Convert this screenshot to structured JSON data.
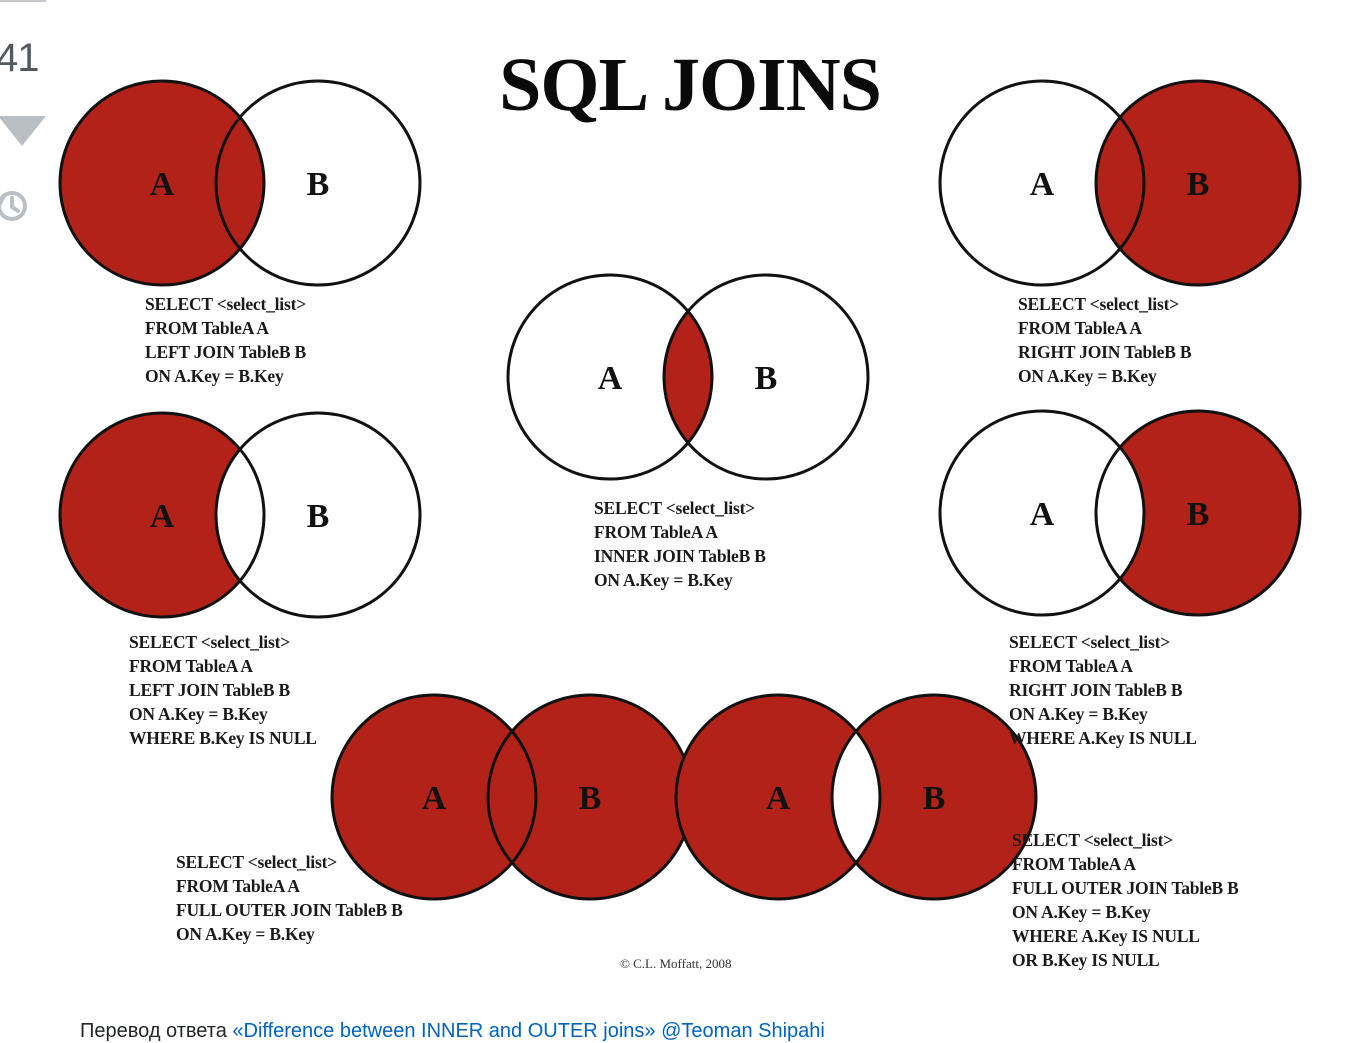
{
  "post": {
    "vote_count": "41"
  },
  "figure": {
    "title": "SQL JOINS",
    "copyright": "© C.L. Moffatt, 2008",
    "colors": {
      "fill": "#b22218",
      "stroke": "#111111",
      "background": "#ffffff"
    },
    "diagrams": [
      {
        "id": "left-join",
        "fill_regions": [
          "A"
        ],
        "labels": [
          "A",
          "B"
        ],
        "sql": [
          "SELECT <select_list>",
          "FROM TableA A",
          "LEFT JOIN TableB B",
          "ON A.Key = B.Key"
        ]
      },
      {
        "id": "right-join",
        "fill_regions": [
          "B"
        ],
        "labels": [
          "A",
          "B"
        ],
        "sql": [
          "SELECT <select_list>",
          "FROM TableA A",
          "RIGHT JOIN TableB B",
          "ON A.Key = B.Key"
        ]
      },
      {
        "id": "inner-join",
        "fill_regions": [
          "intersection"
        ],
        "labels": [
          "A",
          "B"
        ],
        "sql": [
          "SELECT <select_list>",
          "FROM TableA A",
          "INNER JOIN TableB B",
          "ON A.Key = B.Key"
        ]
      },
      {
        "id": "left-excluding-join",
        "fill_regions": [
          "A-only"
        ],
        "labels": [
          "A",
          "B"
        ],
        "sql": [
          "SELECT <select_list>",
          "FROM TableA A",
          "LEFT JOIN TableB B",
          "ON A.Key = B.Key",
          "WHERE B.Key IS NULL"
        ]
      },
      {
        "id": "right-excluding-join",
        "fill_regions": [
          "B-only"
        ],
        "labels": [
          "A",
          "B"
        ],
        "sql": [
          "SELECT <select_list>",
          "FROM TableA A",
          "RIGHT JOIN TableB B",
          "ON A.Key = B.Key",
          "WHERE A.Key IS NULL"
        ]
      },
      {
        "id": "full-outer-join",
        "fill_regions": [
          "A",
          "B"
        ],
        "labels": [
          "A",
          "B"
        ],
        "sql": [
          "SELECT <select_list>",
          "FROM TableA A",
          "FULL OUTER JOIN TableB B",
          "ON A.Key = B.Key"
        ]
      },
      {
        "id": "full-outer-excluding-join",
        "fill_regions": [
          "A-only",
          "B-only"
        ],
        "labels": [
          "A",
          "B"
        ],
        "sql": [
          "SELECT <select_list>",
          "FROM TableA A",
          "FULL OUTER JOIN TableB B",
          "ON A.Key = B.Key",
          "WHERE A.Key IS NULL",
          "OR B.Key IS NULL"
        ]
      }
    ]
  },
  "caption": {
    "prefix": "Перевод ответа ",
    "link_text": "«Difference between INNER and OUTER joins»",
    "author": "@Teoman Shipahi"
  },
  "icons": {
    "vote_down": "triangle-down-icon",
    "history": "history-icon"
  }
}
